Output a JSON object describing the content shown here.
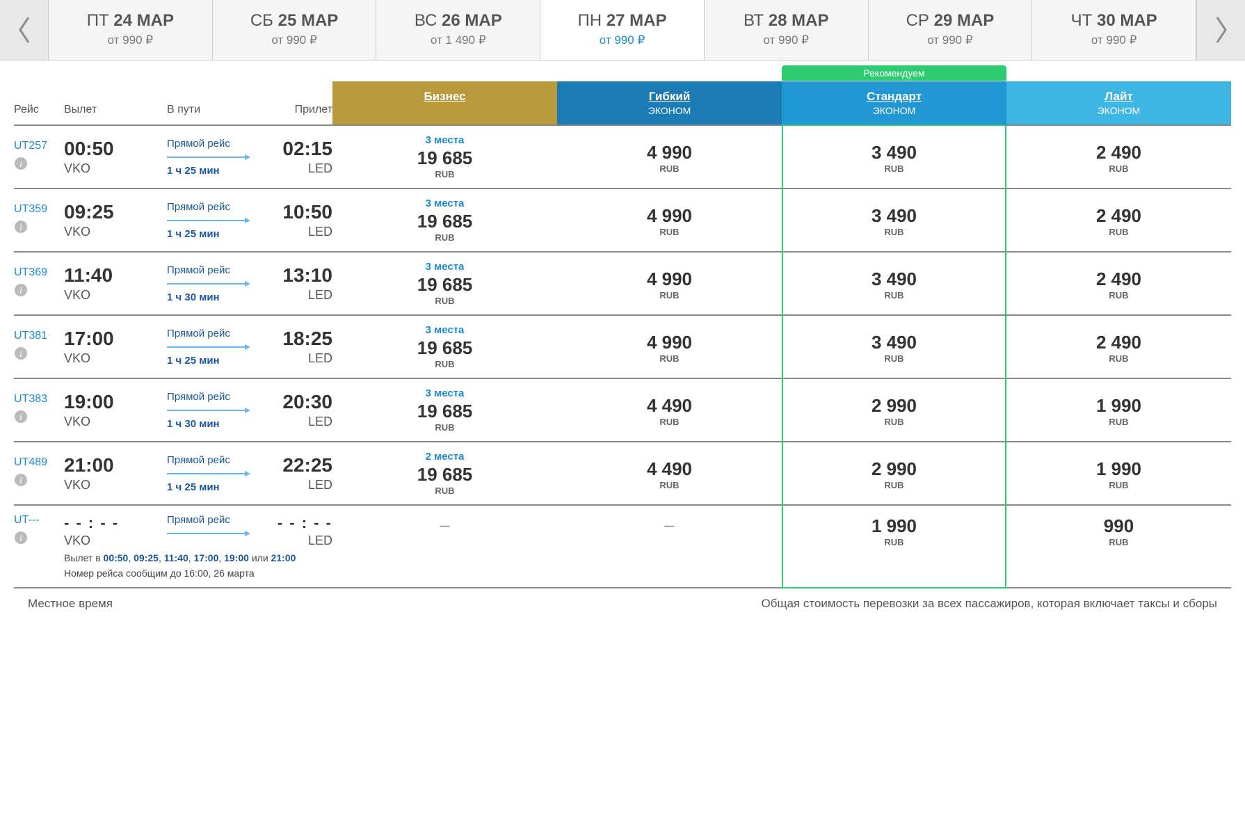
{
  "dateTabs": [
    {
      "dow": "ПТ",
      "date": "24 МАР",
      "fromLabel": "от",
      "price": "990",
      "active": false
    },
    {
      "dow": "СБ",
      "date": "25 МАР",
      "fromLabel": "от",
      "price": "990",
      "active": false
    },
    {
      "dow": "ВС",
      "date": "26 МАР",
      "fromLabel": "от",
      "price": "1 490",
      "active": false
    },
    {
      "dow": "ПН",
      "date": "27 МАР",
      "fromLabel": "от",
      "price": "990",
      "active": true
    },
    {
      "dow": "ВТ",
      "date": "28 МАР",
      "fromLabel": "от",
      "price": "990",
      "active": false
    },
    {
      "dow": "СР",
      "date": "29 МАР",
      "fromLabel": "от",
      "price": "990",
      "active": false
    },
    {
      "dow": "ЧТ",
      "date": "30 МАР",
      "fromLabel": "от",
      "price": "990",
      "active": false
    }
  ],
  "currencySymbol": "₽",
  "headers": {
    "flight": "Рейс",
    "departure": "Вылет",
    "duration": "В пути",
    "arrival": "Прилет",
    "recommended": "Рекомендуем"
  },
  "fareClasses": [
    {
      "key": "biz",
      "title": "Бизнес",
      "sub": "",
      "color": "#b99a3a"
    },
    {
      "key": "flex",
      "title": "Гибкий",
      "sub": "ЭКОНОМ",
      "color": "#1a7bb5"
    },
    {
      "key": "std",
      "title": "Стандарт",
      "sub": "ЭКОНОМ",
      "color": "#2197d4",
      "recommended": true
    },
    {
      "key": "lite",
      "title": "Лайт",
      "sub": "ЭКОНОМ",
      "color": "#3db6e5"
    }
  ],
  "labels": {
    "direct": "Прямой рейс",
    "currency": "RUB",
    "departureAt": "Вылет в",
    "or": "или",
    "flightNumberNote": "Номер рейса сообщим до 16:00, 26 марта"
  },
  "flights": [
    {
      "number": "UT257",
      "depTime": "00:50",
      "depCode": "VKO",
      "duration": "1 ч 25 мин",
      "arrTime": "02:15",
      "arrCode": "LED",
      "fares": {
        "biz": {
          "seats": "3 места",
          "price": "19 685"
        },
        "flex": {
          "price": "4 990"
        },
        "std": {
          "price": "3 490"
        },
        "lite": {
          "price": "2 490"
        }
      }
    },
    {
      "number": "UT359",
      "depTime": "09:25",
      "depCode": "VKO",
      "duration": "1 ч 25 мин",
      "arrTime": "10:50",
      "arrCode": "LED",
      "fares": {
        "biz": {
          "seats": "3 места",
          "price": "19 685"
        },
        "flex": {
          "price": "4 990"
        },
        "std": {
          "price": "3 490"
        },
        "lite": {
          "price": "2 490"
        }
      }
    },
    {
      "number": "UT369",
      "depTime": "11:40",
      "depCode": "VKO",
      "duration": "1 ч 30 мин",
      "arrTime": "13:10",
      "arrCode": "LED",
      "fares": {
        "biz": {
          "seats": "3 места",
          "price": "19 685"
        },
        "flex": {
          "price": "4 990"
        },
        "std": {
          "price": "3 490"
        },
        "lite": {
          "price": "2 490"
        }
      }
    },
    {
      "number": "UT381",
      "depTime": "17:00",
      "depCode": "VKO",
      "duration": "1 ч 25 мин",
      "arrTime": "18:25",
      "arrCode": "LED",
      "fares": {
        "biz": {
          "seats": "3 места",
          "price": "19 685"
        },
        "flex": {
          "price": "4 990"
        },
        "std": {
          "price": "3 490"
        },
        "lite": {
          "price": "2 490"
        }
      }
    },
    {
      "number": "UT383",
      "depTime": "19:00",
      "depCode": "VKO",
      "duration": "1 ч 30 мин",
      "arrTime": "20:30",
      "arrCode": "LED",
      "fares": {
        "biz": {
          "seats": "3 места",
          "price": "19 685"
        },
        "flex": {
          "price": "4 490"
        },
        "std": {
          "price": "2 990"
        },
        "lite": {
          "price": "1 990"
        }
      }
    },
    {
      "number": "UT489",
      "depTime": "21:00",
      "depCode": "VKO",
      "duration": "1 ч 25 мин",
      "arrTime": "22:25",
      "arrCode": "LED",
      "fares": {
        "biz": {
          "seats": "2 места",
          "price": "19 685"
        },
        "flex": {
          "price": "4 490"
        },
        "std": {
          "price": "2 990"
        },
        "lite": {
          "price": "1 990"
        }
      }
    }
  ],
  "openFlight": {
    "number": "UT---",
    "depTime": "- - : - -",
    "depCode": "VKO",
    "arrTime": "- - : - -",
    "arrCode": "LED",
    "times": [
      "00:50",
      "09:25",
      "11:40",
      "17:00",
      "19:00",
      "21:00"
    ],
    "fares": {
      "biz": null,
      "flex": null,
      "std": {
        "price": "1 990"
      },
      "lite": {
        "price": "990"
      }
    }
  },
  "footer": {
    "left": "Местное время",
    "right": "Общая стоимость перевозки за всех пассажиров, которая включает таксы и сборы"
  },
  "colors": {
    "recommendedBorder": "#2ecc71",
    "linkBlue": "#1a8ad6",
    "navy": "#1a569e"
  }
}
